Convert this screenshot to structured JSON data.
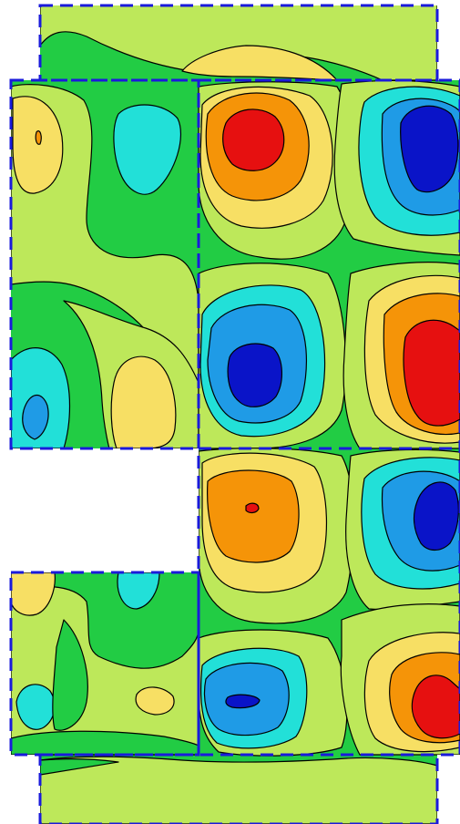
{
  "figure": {
    "kind": "contour-field",
    "background": "#ffffff",
    "domain_outline_color": "#1a1adb",
    "contour_line_color": "#000000",
    "levels": [
      {
        "level": -3,
        "color": "#0a14c8"
      },
      {
        "level": -2,
        "color": "#1f9be6"
      },
      {
        "level": -1,
        "color": "#22e0d8"
      },
      {
        "level": 0,
        "color": "#22cc44"
      },
      {
        "level": 1,
        "color": "#bde85a"
      },
      {
        "level": 2,
        "color": "#f7df64"
      },
      {
        "level": 3,
        "color": "#f59408"
      },
      {
        "level": 4,
        "color": "#e61010"
      }
    ]
  }
}
